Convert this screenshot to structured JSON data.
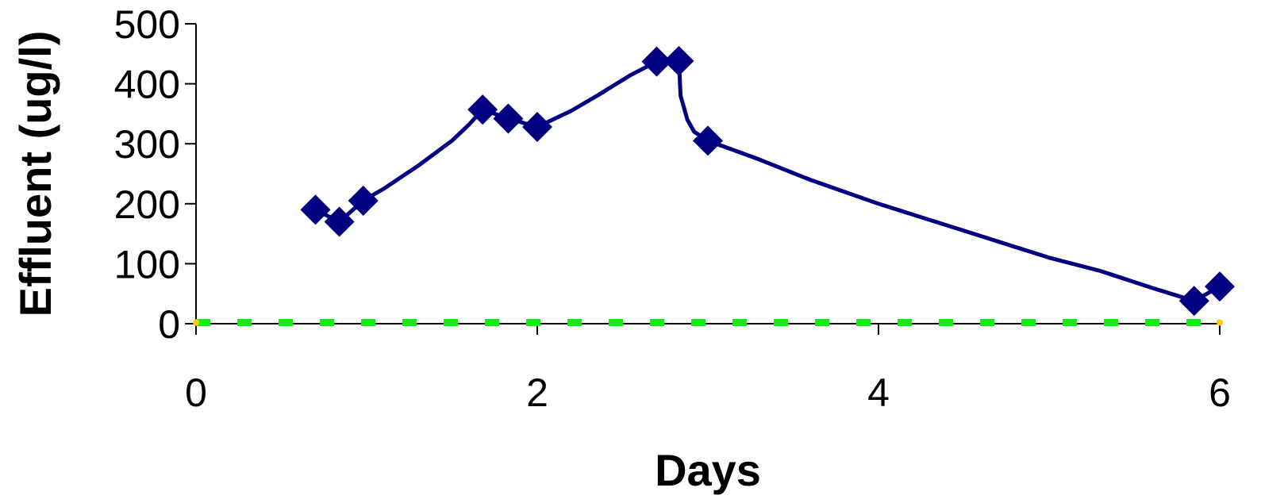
{
  "chart_data": {
    "type": "line",
    "title": "",
    "xlabel": "Days",
    "ylabel": "Effluent (ug/l)",
    "xlim": [
      0,
      6
    ],
    "ylim": [
      0,
      500
    ],
    "x_ticks": [
      0,
      2,
      4,
      6
    ],
    "y_ticks": [
      0,
      100,
      200,
      300,
      400,
      500
    ],
    "x_tick_labels": [
      "0",
      "2",
      "4",
      "6"
    ],
    "y_tick_labels": [
      "0",
      "100",
      "200",
      "300",
      "400",
      "500"
    ],
    "grid": false,
    "legend": "none",
    "series": [
      {
        "style": "line-with-markers",
        "color": "#000080",
        "marker": "diamond",
        "markers": [
          {
            "x": 0.7,
            "y": 190
          },
          {
            "x": 0.84,
            "y": 170
          },
          {
            "x": 0.98,
            "y": 205
          },
          {
            "x": 1.68,
            "y": 357
          },
          {
            "x": 1.83,
            "y": 342
          },
          {
            "x": 2.0,
            "y": 328
          },
          {
            "x": 2.7,
            "y": 437
          },
          {
            "x": 2.83,
            "y": 438
          },
          {
            "x": 3.0,
            "y": 305
          },
          {
            "x": 5.85,
            "y": 38
          },
          {
            "x": 6.0,
            "y": 62
          }
        ],
        "curve": [
          {
            "x": 0.7,
            "y": 190
          },
          {
            "x": 0.84,
            "y": 170
          },
          {
            "x": 0.98,
            "y": 205
          },
          {
            "x": 1.1,
            "y": 225
          },
          {
            "x": 1.3,
            "y": 263
          },
          {
            "x": 1.5,
            "y": 305
          },
          {
            "x": 1.6,
            "y": 332
          },
          {
            "x": 1.68,
            "y": 357
          },
          {
            "x": 1.83,
            "y": 342
          },
          {
            "x": 2.0,
            "y": 328
          },
          {
            "x": 2.2,
            "y": 355
          },
          {
            "x": 2.35,
            "y": 380
          },
          {
            "x": 2.55,
            "y": 415
          },
          {
            "x": 2.7,
            "y": 437
          },
          {
            "x": 2.83,
            "y": 438
          },
          {
            "x": 2.84,
            "y": 380
          },
          {
            "x": 2.88,
            "y": 340
          },
          {
            "x": 2.92,
            "y": 320
          },
          {
            "x": 3.0,
            "y": 305
          },
          {
            "x": 3.3,
            "y": 274
          },
          {
            "x": 3.6,
            "y": 240
          },
          {
            "x": 4.0,
            "y": 200
          },
          {
            "x": 4.5,
            "y": 155
          },
          {
            "x": 5.0,
            "y": 110
          },
          {
            "x": 5.3,
            "y": 88
          },
          {
            "x": 5.6,
            "y": 60
          },
          {
            "x": 5.85,
            "y": 38
          },
          {
            "x": 6.0,
            "y": 62
          }
        ]
      },
      {
        "style": "dashed-line",
        "color": "#11ee11",
        "points": [
          {
            "x": 0,
            "y": 2
          },
          {
            "x": 6,
            "y": 2
          }
        ]
      }
    ]
  }
}
